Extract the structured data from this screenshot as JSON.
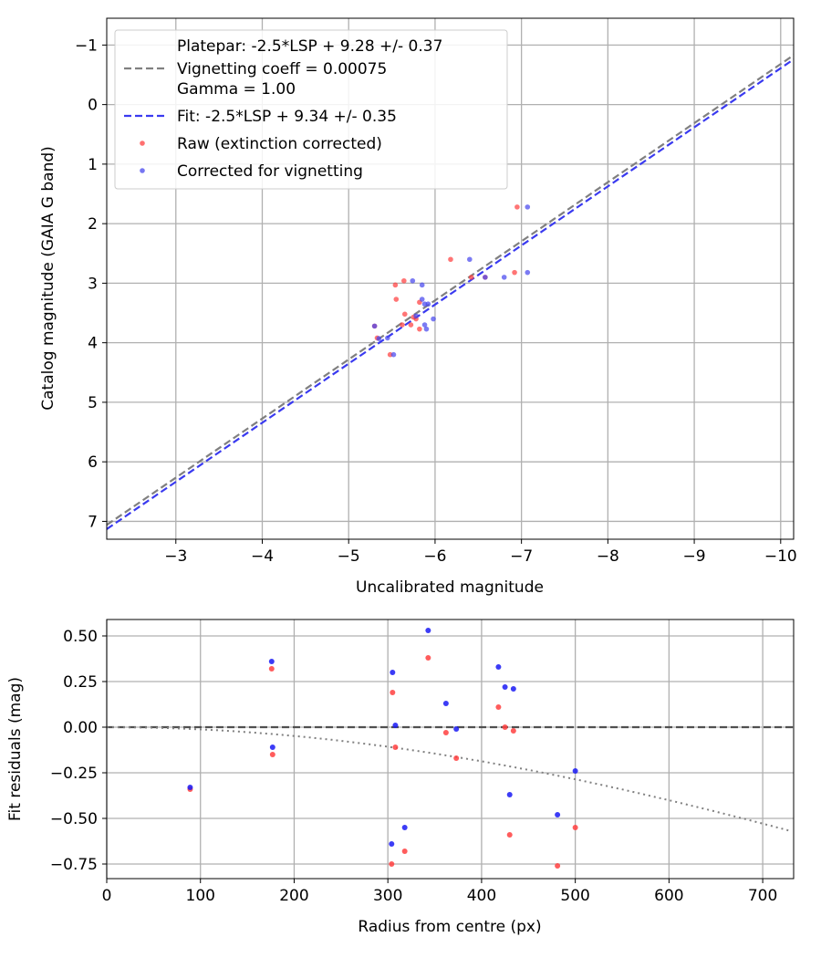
{
  "chart_data": [
    {
      "type": "scatter",
      "xlabel": "Uncalibrated magnitude",
      "ylabel": "Catalog magnitude (GAIA G band)",
      "xlim": [
        -2.2,
        -10.15
      ],
      "ylim": [
        7.3,
        -1.45
      ],
      "xticks": [
        -3,
        -4,
        -5,
        -6,
        -7,
        -8,
        -9,
        -10
      ],
      "yticks": [
        -1,
        0,
        1,
        2,
        3,
        4,
        5,
        6,
        7
      ],
      "xtick_labels": [
        "−3",
        "−4",
        "−5",
        "−6",
        "−7",
        "−8",
        "−9",
        "−10"
      ],
      "ytick_labels": [
        "−1",
        "0",
        "1",
        "2",
        "3",
        "4",
        "5",
        "6",
        "7"
      ],
      "grid": true,
      "legend_position": "top-left",
      "legend": [
        {
          "kind": "none",
          "label": "Platepar: -2.5*LSP + 9.28 +/- 0.37"
        },
        {
          "kind": "dash-gray",
          "label": "Vignetting coeff = 0.00075"
        },
        {
          "kind": "none",
          "label": "Gamma = 1.00"
        },
        {
          "kind": "dash-blue",
          "label": "Fit: -2.5*LSP + 9.34 +/- 0.35"
        },
        {
          "kind": "dot-red",
          "label": "Raw (extinction corrected)"
        },
        {
          "kind": "dot-blue",
          "label": "Corrected for vignetting"
        }
      ],
      "lines": [
        {
          "name": "Platepar",
          "color": "#808080",
          "x": [
            -2.2,
            -10.15
          ],
          "y": [
            7.06,
            -0.83
          ]
        },
        {
          "name": "Fit",
          "color": "#3a3af0",
          "x": [
            -2.2,
            -10.15
          ],
          "y": [
            7.13,
            -0.76
          ]
        }
      ],
      "series": [
        {
          "name": "Raw (extinction corrected)",
          "color": "#ff4040",
          "x": [
            -6.95,
            -6.92,
            -6.18,
            -6.42,
            -5.64,
            -5.54,
            -5.55,
            -5.65,
            -5.78,
            -5.82,
            -5.75,
            -5.72,
            -5.62,
            -5.33,
            -5.48,
            -5.3,
            -5.82,
            -6.58
          ],
          "y": [
            1.72,
            2.82,
            2.6,
            2.9,
            2.96,
            3.03,
            3.27,
            3.52,
            3.6,
            3.32,
            3.57,
            3.7,
            3.7,
            3.92,
            4.2,
            3.72,
            3.77,
            2.9
          ]
        },
        {
          "name": "Corrected for vignetting",
          "color": "#4848ee",
          "x": [
            -7.07,
            -7.07,
            -6.4,
            -6.58,
            -6.8,
            -5.74,
            -5.85,
            -5.85,
            -5.88,
            -5.88,
            -5.9,
            -5.92,
            -5.98,
            -5.78,
            -5.52,
            -5.45,
            -5.3,
            -5.35
          ],
          "y": [
            1.72,
            2.82,
            2.6,
            2.9,
            2.9,
            2.96,
            3.03,
            3.27,
            3.35,
            3.7,
            3.77,
            3.35,
            3.6,
            3.55,
            4.2,
            3.92,
            3.72,
            3.93
          ]
        }
      ]
    },
    {
      "type": "scatter",
      "xlabel": "Radius from centre (px)",
      "ylabel": "Fit residuals (mag)",
      "xlim": [
        0,
        733
      ],
      "ylim": [
        -0.83,
        0.59
      ],
      "xticks": [
        0,
        100,
        200,
        300,
        400,
        500,
        600,
        700
      ],
      "yticks": [
        0.5,
        0.25,
        0.0,
        -0.25,
        -0.5,
        -0.75
      ],
      "xtick_labels": [
        "0",
        "100",
        "200",
        "300",
        "400",
        "500",
        "600",
        "700"
      ],
      "ytick_labels": [
        "0.50",
        "0.25",
        "0.00",
        "−0.25",
        "−0.50",
        "−0.75"
      ],
      "grid": true,
      "reference_line": {
        "y": 0.0,
        "color": "#505050"
      },
      "vignetting_curve": {
        "coeff": 0.00075,
        "color": "#808080"
      },
      "series": [
        {
          "name": "Raw (extinction corrected)",
          "color": "#ff4040",
          "x": [
            89,
            176,
            177,
            304,
            305,
            308,
            318,
            343,
            362,
            373,
            418,
            425,
            430,
            434,
            481,
            500
          ],
          "y": [
            -0.34,
            0.32,
            -0.15,
            -0.75,
            0.19,
            -0.11,
            -0.68,
            0.38,
            -0.03,
            -0.17,
            0.11,
            0.0,
            -0.59,
            -0.02,
            -0.76,
            -0.55
          ]
        },
        {
          "name": "Corrected for vignetting",
          "color": "#1a1af5",
          "x": [
            89,
            176,
            177,
            304,
            305,
            308,
            318,
            343,
            362,
            373,
            418,
            425,
            430,
            434,
            481,
            500
          ],
          "y": [
            -0.33,
            0.36,
            -0.11,
            -0.64,
            0.3,
            0.01,
            -0.55,
            0.53,
            0.13,
            -0.01,
            0.33,
            0.22,
            -0.37,
            0.21,
            -0.48,
            -0.24
          ]
        }
      ]
    }
  ]
}
